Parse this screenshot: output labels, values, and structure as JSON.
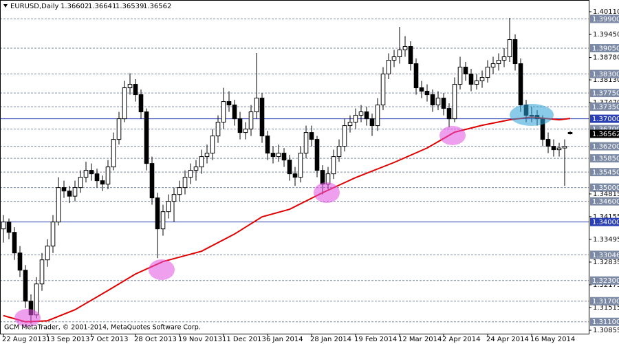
{
  "header": {
    "symbol": "EURUSD,Daily",
    "copyright": "GCM MetaTrader, © 2001-2014, MetaQuotes Software Corp."
  },
  "chart_data": {
    "type": "candlestick",
    "ylim": [
      1.30755,
      1.4045
    ],
    "xlim": [
      -0.625,
      106.375
    ],
    "yticks": [
      {
        "value": 1.4011,
        "label": "1.40110"
      },
      {
        "value": 1.3945,
        "label": "1.39450"
      },
      {
        "value": 1.3878,
        "label": "1.38780"
      },
      {
        "value": 1.3813,
        "label": "1.38130"
      },
      {
        "value": 1.3747,
        "label": "1.37470"
      },
      {
        "value": 1.34815,
        "label": "1.34815"
      },
      {
        "value": 1.34155,
        "label": "1.34155"
      },
      {
        "value": 1.33495,
        "label": "1.33495"
      },
      {
        "value": 1.32835,
        "label": "1.32835"
      },
      {
        "value": 1.32175,
        "label": "1.32175"
      },
      {
        "value": 1.31515,
        "label": "1.31515"
      },
      {
        "value": 1.30855,
        "label": "1.30855"
      }
    ],
    "xticks": [
      {
        "value": 0,
        "label": "22 Aug 2013"
      },
      {
        "value": 8,
        "label": "13 Sep 2013"
      },
      {
        "value": 16,
        "label": "7 Oct 2013"
      },
      {
        "value": 24,
        "label": "28 Oct 2013"
      },
      {
        "value": 32,
        "label": "19 Nov 2013"
      },
      {
        "value": 40,
        "label": "11 Dec 2013"
      },
      {
        "value": 48,
        "label": "6 Jan 2014"
      },
      {
        "value": 56,
        "label": "28 Jan 2014"
      },
      {
        "value": 64,
        "label": "19 Feb 2014"
      },
      {
        "value": 72,
        "label": "12 Mar 2014"
      },
      {
        "value": 80,
        "label": "2 Apr 2014"
      },
      {
        "value": 88,
        "label": "24 Apr 2014"
      },
      {
        "value": 96,
        "label": "16 May 2014"
      }
    ],
    "levels": [
      {
        "value": 1.399,
        "label": "1.39900",
        "style": "dashed"
      },
      {
        "value": 1.3905,
        "label": "1.39050",
        "style": "dashed"
      },
      {
        "value": 1.383,
        "label": "1.38300",
        "style": "dashed"
      },
      {
        "value": 1.3775,
        "label": "1.37750",
        "style": "dashed"
      },
      {
        "value": 1.3735,
        "label": "1.37350",
        "style": "dashed"
      },
      {
        "value": 1.37,
        "label": "1.37000",
        "style": "solid"
      },
      {
        "value": 1.367,
        "label": "1.36700",
        "style": "dashed"
      },
      {
        "value": 1.362,
        "label": "1.36200",
        "style": "dashed"
      },
      {
        "value": 1.3585,
        "label": "1.35850",
        "style": "dashed"
      },
      {
        "value": 1.3545,
        "label": "1.35450",
        "style": "dashed"
      },
      {
        "value": 1.35,
        "label": "1.35000",
        "style": "dashed"
      },
      {
        "value": 1.346,
        "label": "1.34600",
        "style": "dashed"
      },
      {
        "value": 1.34,
        "label": "1.34000",
        "style": "solid"
      },
      {
        "value": 1.33046,
        "label": "1.33046",
        "style": "dashed"
      },
      {
        "value": 1.323,
        "label": "1.32300",
        "style": "dashed"
      },
      {
        "value": 1.317,
        "label": "1.31700",
        "style": "dashed"
      },
      {
        "value": 1.311,
        "label": "1.31100",
        "style": "dashed"
      }
    ],
    "level_colors": {
      "dashed": "#7d8aa6",
      "solid": "#2b3fb5"
    },
    "up_color": "#ffffff",
    "down_color": "#000000",
    "current_color": "#000000",
    "bars": [
      [
        1.338,
        1.342,
        1.334,
        1.34
      ],
      [
        1.34,
        1.341,
        1.335,
        1.337
      ],
      [
        1.337,
        1.3385,
        1.329,
        1.331
      ],
      [
        1.331,
        1.333,
        1.324,
        1.326
      ],
      [
        1.326,
        1.3275,
        1.315,
        1.317
      ],
      [
        1.317,
        1.319,
        1.3105,
        1.313
      ],
      [
        1.313,
        1.324,
        1.312,
        1.322
      ],
      [
        1.322,
        1.331,
        1.32,
        1.329
      ],
      [
        1.329,
        1.335,
        1.327,
        1.333
      ],
      [
        1.333,
        1.342,
        1.331,
        1.34
      ],
      [
        1.34,
        1.353,
        1.339,
        1.35
      ],
      [
        1.35,
        1.352,
        1.347,
        1.349
      ],
      [
        1.349,
        1.3505,
        1.3455,
        1.3475
      ],
      [
        1.3475,
        1.352,
        1.346,
        1.35
      ],
      [
        1.35,
        1.355,
        1.3485,
        1.353
      ],
      [
        1.353,
        1.3575,
        1.3515,
        1.355
      ],
      [
        1.355,
        1.357,
        1.352,
        1.354
      ],
      [
        1.354,
        1.3555,
        1.35,
        1.352
      ],
      [
        1.352,
        1.3535,
        1.349,
        1.351
      ],
      [
        1.351,
        1.358,
        1.3495,
        1.356
      ],
      [
        1.356,
        1.366,
        1.355,
        1.364
      ],
      [
        1.364,
        1.372,
        1.3625,
        1.37
      ],
      [
        1.37,
        1.381,
        1.369,
        1.379
      ],
      [
        1.379,
        1.3832,
        1.377,
        1.38
      ],
      [
        1.38,
        1.3815,
        1.375,
        1.377
      ],
      [
        1.377,
        1.3785,
        1.37,
        1.372
      ],
      [
        1.372,
        1.373,
        1.355,
        1.357
      ],
      [
        1.357,
        1.359,
        1.345,
        1.347
      ],
      [
        1.347,
        1.3485,
        1.3295,
        1.338
      ],
      [
        1.338,
        1.345,
        1.336,
        1.343
      ],
      [
        1.343,
        1.348,
        1.341,
        1.346
      ],
      [
        1.346,
        1.35,
        1.34,
        1.348
      ],
      [
        1.348,
        1.352,
        1.346,
        1.35
      ],
      [
        1.35,
        1.355,
        1.348,
        1.353
      ],
      [
        1.353,
        1.357,
        1.351,
        1.355
      ],
      [
        1.355,
        1.358,
        1.352,
        1.356
      ],
      [
        1.356,
        1.361,
        1.354,
        1.359
      ],
      [
        1.359,
        1.3625,
        1.357,
        1.36
      ],
      [
        1.36,
        1.367,
        1.358,
        1.365
      ],
      [
        1.365,
        1.371,
        1.363,
        1.369
      ],
      [
        1.369,
        1.379,
        1.367,
        1.375
      ],
      [
        1.375,
        1.378,
        1.372,
        1.374
      ],
      [
        1.374,
        1.3755,
        1.368,
        1.37
      ],
      [
        1.37,
        1.372,
        1.364,
        1.366
      ],
      [
        1.366,
        1.369,
        1.364,
        1.367
      ],
      [
        1.367,
        1.374,
        1.365,
        1.372
      ],
      [
        1.372,
        1.3891,
        1.37,
        1.376
      ],
      [
        1.376,
        1.3775,
        1.363,
        1.365
      ],
      [
        1.365,
        1.3665,
        1.358,
        1.36
      ],
      [
        1.36,
        1.362,
        1.357,
        1.359
      ],
      [
        1.359,
        1.3625,
        1.3575,
        1.36
      ],
      [
        1.36,
        1.3615,
        1.356,
        1.358
      ],
      [
        1.358,
        1.3595,
        1.352,
        1.354
      ],
      [
        1.354,
        1.356,
        1.3505,
        1.353
      ],
      [
        1.353,
        1.362,
        1.3515,
        1.36
      ],
      [
        1.36,
        1.368,
        1.3585,
        1.366
      ],
      [
        1.366,
        1.368,
        1.362,
        1.364
      ],
      [
        1.364,
        1.365,
        1.353,
        1.355
      ],
      [
        1.355,
        1.3565,
        1.348,
        1.351
      ],
      [
        1.351,
        1.356,
        1.3495,
        1.354
      ],
      [
        1.354,
        1.361,
        1.3525,
        1.359
      ],
      [
        1.359,
        1.364,
        1.3575,
        1.362
      ],
      [
        1.362,
        1.37,
        1.3605,
        1.368
      ],
      [
        1.368,
        1.371,
        1.366,
        1.369
      ],
      [
        1.369,
        1.373,
        1.367,
        1.371
      ],
      [
        1.371,
        1.374,
        1.369,
        1.372
      ],
      [
        1.372,
        1.3735,
        1.368,
        1.37
      ],
      [
        1.37,
        1.3715,
        1.365,
        1.368
      ],
      [
        1.368,
        1.376,
        1.3665,
        1.374
      ],
      [
        1.374,
        1.385,
        1.3725,
        1.383
      ],
      [
        1.383,
        1.389,
        1.3815,
        1.387
      ],
      [
        1.387,
        1.39,
        1.385,
        1.388
      ],
      [
        1.388,
        1.3967,
        1.386,
        1.39
      ],
      [
        1.39,
        1.394,
        1.388,
        1.391
      ],
      [
        1.391,
        1.3925,
        1.384,
        1.386
      ],
      [
        1.386,
        1.3875,
        1.377,
        1.379
      ],
      [
        1.379,
        1.381,
        1.376,
        1.378
      ],
      [
        1.378,
        1.38,
        1.375,
        1.377
      ],
      [
        1.377,
        1.3785,
        1.372,
        1.374
      ],
      [
        1.374,
        1.378,
        1.3725,
        1.376
      ],
      [
        1.376,
        1.3775,
        1.371,
        1.373
      ],
      [
        1.373,
        1.3745,
        1.3675,
        1.37
      ],
      [
        1.37,
        1.382,
        1.369,
        1.38
      ],
      [
        1.38,
        1.388,
        1.3785,
        1.385
      ],
      [
        1.385,
        1.3865,
        1.381,
        1.383
      ],
      [
        1.383,
        1.3845,
        1.378,
        1.38
      ],
      [
        1.38,
        1.383,
        1.3785,
        1.381
      ],
      [
        1.381,
        1.384,
        1.379,
        1.382
      ],
      [
        1.382,
        1.387,
        1.3805,
        1.385
      ],
      [
        1.385,
        1.388,
        1.383,
        1.386
      ],
      [
        1.386,
        1.389,
        1.384,
        1.387
      ],
      [
        1.387,
        1.3905,
        1.385,
        1.388
      ],
      [
        1.388,
        1.3993,
        1.3865,
        1.393
      ],
      [
        1.393,
        1.3945,
        1.384,
        1.386
      ],
      [
        1.386,
        1.3875,
        1.372,
        1.374
      ],
      [
        1.374,
        1.3755,
        1.369,
        1.371
      ],
      [
        1.371,
        1.3735,
        1.369,
        1.371
      ],
      [
        1.371,
        1.3725,
        1.368,
        1.37
      ],
      [
        1.37,
        1.371,
        1.362,
        1.364
      ],
      [
        1.364,
        1.366,
        1.36,
        1.362
      ],
      [
        1.362,
        1.364,
        1.359,
        1.361
      ],
      [
        1.361,
        1.363,
        1.359,
        1.3615
      ],
      [
        1.3615,
        1.364,
        1.3505,
        1.362
      ],
      [
        1.36602,
        1.36641,
        1.36539,
        1.36562
      ]
    ],
    "ma": {
      "color": "#e00000",
      "x": [
        0,
        4,
        8,
        13,
        19,
        24,
        29,
        36,
        42,
        47,
        52,
        58,
        64,
        71,
        77,
        82,
        87,
        92,
        96,
        101,
        103
      ],
      "values": [
        1.3128,
        1.311,
        1.3113,
        1.3145,
        1.3201,
        1.3249,
        1.3285,
        1.3315,
        1.3365,
        1.3415,
        1.3437,
        1.3485,
        1.3529,
        1.3573,
        1.3615,
        1.3661,
        1.3681,
        1.3697,
        1.3705,
        1.3697,
        1.3701
      ]
    }
  }
}
